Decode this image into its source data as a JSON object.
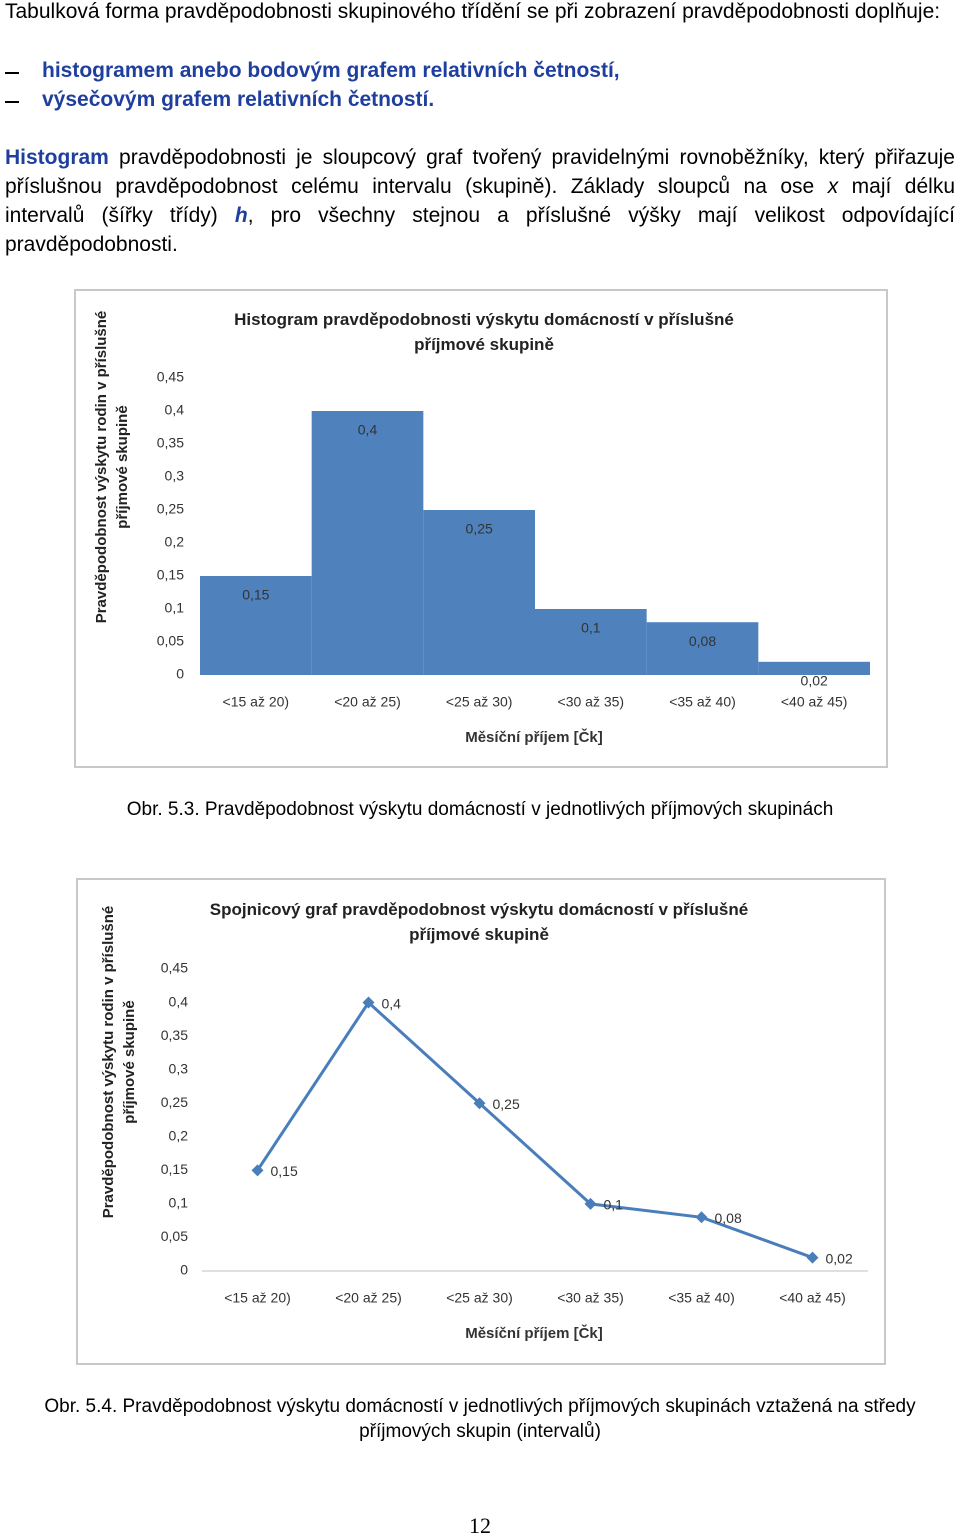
{
  "text": {
    "intro": "Tabulková forma pravděpodobnosti skupinového třídění se při zobrazení pravděpodobnosti doplňuje:",
    "list": [
      "histogramem anebo bodovým grafem relativních četností,",
      "výsečovým grafem relativních četností."
    ],
    "paragraph": [
      "Histogram",
      "pravděpodobnosti je sloupcový graf tvořený pravidelnými rovnoběžníky, který přiřazuje příslušnou pravděpodobnost celému intervalu (skupině). Základy sloupců na ose",
      "x",
      "mají délku intervalů (šířky třídy)",
      "h",
      ", pro všechny stejnou a příslušné výšky mají velikost odpovídající pravděpodobnosti."
    ],
    "captions": [
      "Obr. 5.3. Pravděpodobnost výskytu domácností v jednotlivých příjmových skupinách",
      "Obr. 5.4. Pravděpodobnost výskytu domácností v jednotlivých příjmových skupinách vztažená na středy příjmových skupin (intervalů)"
    ],
    "page_number": "12"
  },
  "chart_data": [
    {
      "type": "bar",
      "title": "Histogram pravděpodobnosti výskytu domácností v příslušné příjmové skupině",
      "x_label": "Měsíční příjem [Čk]",
      "y_label": "Pravděpodobnost výskytu rodin v příslušné příjmové skupině",
      "categories": [
        "<15 až 20)",
        "<20 až 25)",
        "<25 až 30)",
        "<30 až 35)",
        "<35 až 40)",
        "<40 až 45)"
      ],
      "values": [
        0.15,
        0.4,
        0.25,
        0.1,
        0.08,
        0.02
      ],
      "value_labels": [
        "0,15",
        "0,4",
        "0,25",
        "0,1",
        "0,08",
        "0,02"
      ],
      "color": "#4f81bd",
      "ylim": [
        0,
        0.45
      ],
      "yticks": [
        0,
        {
          "value": 0.05,
          "label": "0,05"
        },
        {
          "value": 0.1,
          "label": "0,1"
        },
        {
          "value": 0.15,
          "label": "0,15"
        },
        {
          "value": 0.2,
          "label": "0,2"
        },
        {
          "value": 0.25,
          "label": "0,25"
        },
        {
          "value": 0.3,
          "label": "0,3"
        },
        {
          "value": 0.35,
          "label": "0,35"
        },
        {
          "value": 0.4,
          "label": "0,4"
        },
        {
          "value": 0.45,
          "label": "0,45"
        }
      ]
    },
    {
      "type": "line",
      "title": "Spojnicový graf pravděpodobnost výskytu domácností v příslušné příjmové skupině",
      "x_label": "Měsíční příjem [Čk]",
      "y_label": "Pravděpodobnost výskytu rodin v příslušné příjmové skupině",
      "categories": [
        "<15 až 20)",
        "<20 až 25)",
        "<25 až 30)",
        "<30 až 35)",
        "<35 až 40)",
        "<40 až 45)"
      ],
      "values": [
        0.15,
        0.4,
        0.25,
        0.1,
        0.08,
        0.02
      ],
      "value_labels": [
        "0,15",
        "0,4",
        "0,25",
        "0,1",
        "0,08",
        "0,02"
      ],
      "color": "#4a7ebb",
      "ylim": [
        0,
        0.45
      ],
      "yticks": [
        0,
        {
          "value": 0.05,
          "label": "0,05"
        },
        {
          "value": 0.1,
          "label": "0,1"
        },
        {
          "value": 0.15,
          "label": "0,15"
        },
        {
          "value": 0.2,
          "label": "0,2"
        },
        {
          "value": 0.25,
          "label": "0,25"
        },
        {
          "value": 0.3,
          "label": "0,3"
        },
        {
          "value": 0.35,
          "label": "0,35"
        },
        {
          "value": 0.4,
          "label": "0,4"
        },
        {
          "value": 0.45,
          "label": "0,45"
        }
      ]
    }
  ]
}
